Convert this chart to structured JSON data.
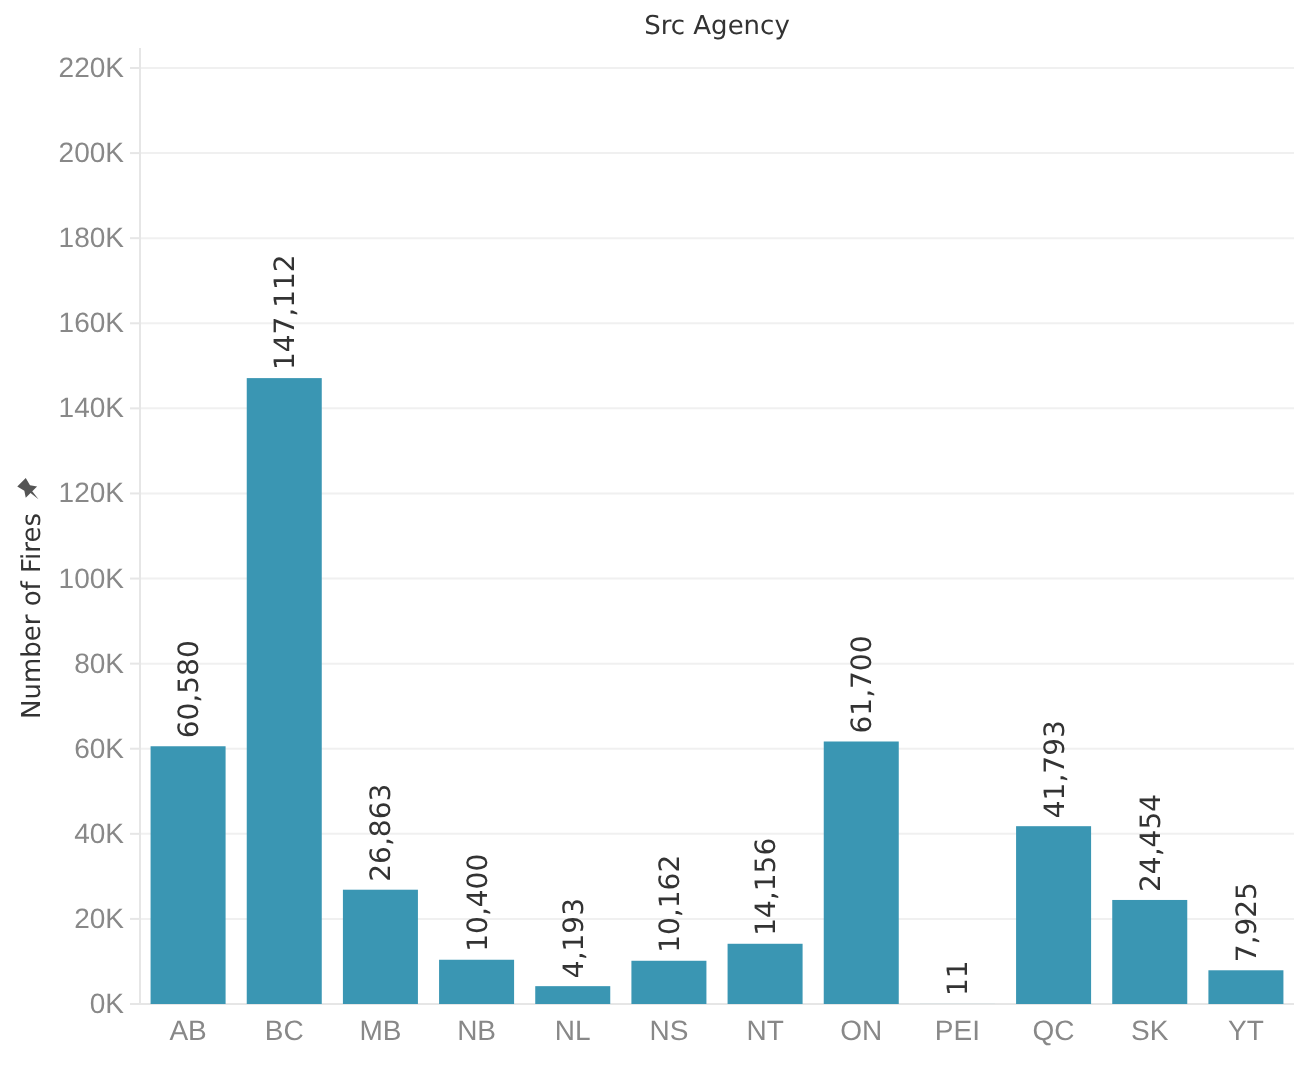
{
  "chart_data": {
    "type": "bar",
    "title": "Src Agency",
    "ylabel": "Number of Fires",
    "categories": [
      "AB",
      "BC",
      "MB",
      "NB",
      "NL",
      "NS",
      "NT",
      "ON",
      "PEI",
      "QC",
      "SK",
      "YT"
    ],
    "values": [
      60580,
      147112,
      26863,
      10400,
      4193,
      10162,
      14156,
      61700,
      11,
      41793,
      24454,
      7925
    ],
    "value_labels": [
      "60,580",
      "147,112",
      "26,863",
      "10,400",
      "4,193",
      "10,162",
      "14,156",
      "61,700",
      "11",
      "41,793",
      "24,454",
      "7,925"
    ],
    "color": "#3a96b3",
    "grid": "y",
    "ylim": [
      0,
      220000
    ],
    "yticks": [
      {
        "value": 0,
        "label": "0K"
      },
      {
        "value": 20000,
        "label": "20K"
      },
      {
        "value": 40000,
        "label": "40K"
      },
      {
        "value": 60000,
        "label": "60K"
      },
      {
        "value": 80000,
        "label": "80K"
      },
      {
        "value": 100000,
        "label": "100K"
      },
      {
        "value": 120000,
        "label": "120K"
      },
      {
        "value": 140000,
        "label": "140K"
      },
      {
        "value": 160000,
        "label": "160K"
      },
      {
        "value": 180000,
        "label": "180K"
      },
      {
        "value": 200000,
        "label": "200K"
      },
      {
        "value": 220000,
        "label": "220K"
      }
    ]
  }
}
